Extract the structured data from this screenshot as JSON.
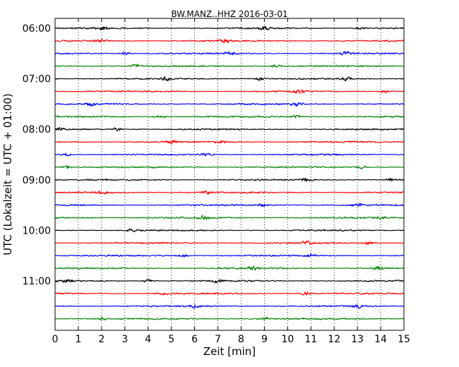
{
  "chart_data": {
    "type": "line",
    "title": "BW.MANZ..HHZ 2016-03-01",
    "xlabel": "Zeit  [min]",
    "ylabel": "UTC (Lokalzeit = UTC + 01:00)",
    "xlim": [
      0,
      15
    ],
    "x_ticks": [
      "0",
      "1",
      "2",
      "3",
      "4",
      "5",
      "6",
      "7",
      "8",
      "9",
      "10",
      "11",
      "12",
      "13",
      "14",
      "15"
    ],
    "y_ticks": [
      "06:00",
      "07:00",
      "08:00",
      "09:00",
      "10:00",
      "11:00"
    ],
    "grid": "vertical dotted",
    "trace_colors": [
      "#000000",
      "#ff0000",
      "#0000ff",
      "#008000"
    ],
    "trace_start_times": [
      "06:00",
      "06:15",
      "06:30",
      "06:45",
      "07:00",
      "07:15",
      "07:30",
      "07:45",
      "08:00",
      "08:15",
      "08:30",
      "08:45",
      "09:00",
      "09:15",
      "09:30",
      "09:45",
      "10:00",
      "10:15",
      "10:30",
      "10:45",
      "11:00",
      "11:15",
      "11:30",
      "11:45"
    ],
    "trace_amplitude_bursts_min": [
      [
        2.0,
        9.0,
        13.1
      ],
      [
        2.0,
        7.3
      ],
      [
        3.0,
        7.5,
        12.5
      ],
      [
        3.5,
        9.5
      ],
      [
        4.8,
        8.8,
        12.5
      ],
      [
        10.5,
        14.2
      ],
      [
        1.5,
        10.4
      ],
      [
        4.5,
        10.4
      ],
      [
        0.1,
        2.7
      ],
      [
        5.0,
        7.1
      ],
      [
        0.5,
        6.5
      ],
      [
        0.5,
        13.2
      ],
      [
        10.8,
        14.5
      ],
      [
        2.0,
        6.5
      ],
      [
        8.9,
        13.0
      ],
      [
        6.4,
        14.0
      ],
      [
        3.3
      ],
      [
        10.8,
        13.5
      ],
      [
        5.5,
        11.0
      ],
      [
        8.5,
        13.9
      ],
      [
        0.5,
        4.0,
        7.0
      ],
      [
        4.6,
        10.8
      ],
      [
        6.0,
        13.0
      ],
      [
        2.0,
        9.0
      ]
    ]
  }
}
